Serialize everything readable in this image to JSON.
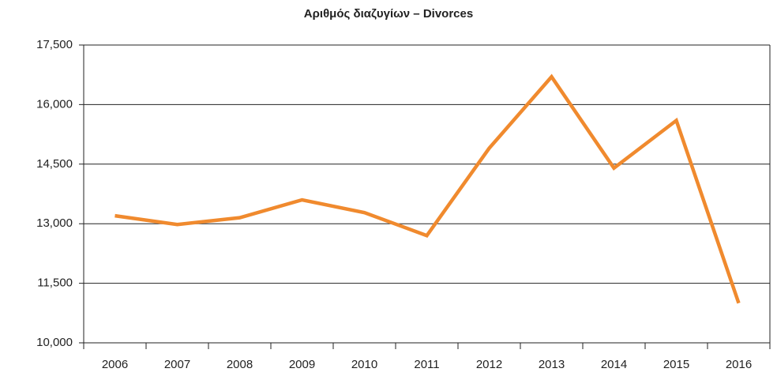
{
  "chart_data": {
    "type": "line",
    "title": "Αριθμός διαζυγίων – Divorces",
    "categories": [
      "2006",
      "2007",
      "2008",
      "2009",
      "2010",
      "2011",
      "2012",
      "2013",
      "2014",
      "2015",
      "2016"
    ],
    "series": [
      {
        "color": "#f08a2e",
        "values": [
          13200,
          12980,
          13150,
          13600,
          13280,
          12700,
          14900,
          16700,
          14400,
          15600,
          11000
        ]
      }
    ],
    "ylim": [
      10000,
      17500
    ],
    "yticks": [
      {
        "value": 10000,
        "label": "10,000"
      },
      {
        "value": 11500,
        "label": "11,500"
      },
      {
        "value": 13000,
        "label": "13,000"
      },
      {
        "value": 14500,
        "label": "14,500"
      },
      {
        "value": 16000,
        "label": "16,000"
      },
      {
        "value": 17500,
        "label": "17,500"
      }
    ],
    "grid": true
  }
}
